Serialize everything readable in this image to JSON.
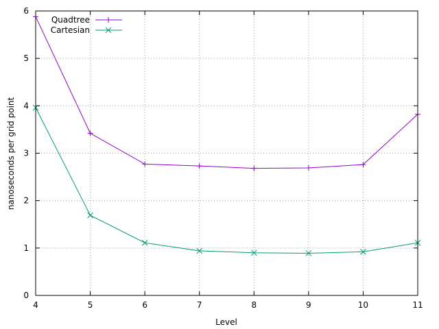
{
  "chart_data": {
    "type": "line",
    "xlabel": "Level",
    "ylabel": "nanoseconds per grid point",
    "xlim": [
      4,
      11
    ],
    "ylim": [
      0,
      6
    ],
    "x": [
      4,
      5,
      6,
      7,
      8,
      9,
      10,
      11
    ],
    "x_ticks": [
      4,
      5,
      6,
      7,
      8,
      9,
      10,
      11
    ],
    "y_ticks": [
      0,
      1,
      2,
      3,
      4,
      5,
      6
    ],
    "grid": true,
    "grid_style": "dotted",
    "legend_position": "top-left",
    "series": [
      {
        "name": "Quadtree",
        "color": "#9400d3",
        "marker": "plus",
        "values": [
          5.88,
          3.42,
          2.77,
          2.73,
          2.68,
          2.69,
          2.76,
          3.82
        ]
      },
      {
        "name": "Cartesian",
        "color": "#009e73",
        "marker": "cross",
        "values": [
          3.96,
          1.69,
          1.11,
          0.94,
          0.9,
          0.89,
          0.92,
          1.11
        ]
      }
    ]
  }
}
